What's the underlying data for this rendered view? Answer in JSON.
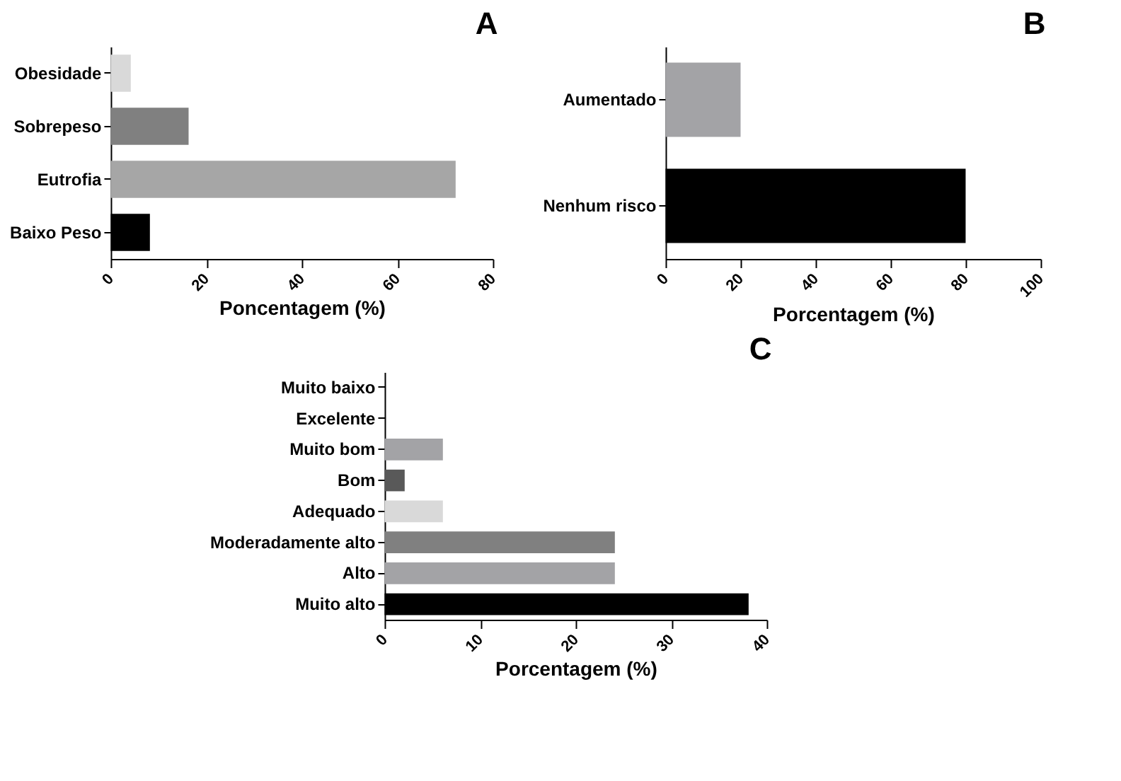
{
  "chart_data": [
    {
      "type": "bar",
      "orientation": "horizontal",
      "title": "A",
      "xlabel": "Poncentagem (%)",
      "categories": [
        "Obesidade",
        "Sobrepeso",
        "Eutrofia",
        "Baixo Peso"
      ],
      "values": [
        4.2,
        16.3,
        72.2,
        8.2
      ],
      "colors": [
        "#d9d9d9",
        "#808080",
        "#a6a6a6",
        "#000000"
      ],
      "xlim": [
        0,
        80
      ],
      "xticks": [
        0,
        20,
        40,
        60,
        80
      ],
      "grid": false
    },
    {
      "type": "bar",
      "orientation": "horizontal",
      "title": "B",
      "xlabel": "Porcentagem (%)",
      "categories": [
        "Aumentado",
        "Nenhum risco"
      ],
      "values": [
        20,
        80
      ],
      "colors": [
        "#a3a3a6",
        "#000000"
      ],
      "xlim": [
        0,
        100
      ],
      "xticks": [
        0,
        20,
        40,
        60,
        80,
        100
      ],
      "grid": false
    },
    {
      "type": "bar",
      "orientation": "horizontal",
      "title": "C",
      "xlabel": "Porcentagem (%)",
      "categories": [
        "Muito baixo",
        "Excelente",
        "Muito bom",
        "Bom",
        "Adequado",
        "Moderadamente alto",
        "Alto",
        "Muito alto"
      ],
      "values": [
        0,
        0,
        6.1,
        2.1,
        6.1,
        24.1,
        24.1,
        38.1
      ],
      "colors": [
        "#a3a3a6",
        "#a3a3a6",
        "#a3a3a6",
        "#595959",
        "#d9d9d9",
        "#808080",
        "#a3a3a6",
        "#000000"
      ],
      "xlim": [
        0,
        40
      ],
      "xticks": [
        0,
        10,
        20,
        30,
        40
      ],
      "grid": false
    }
  ]
}
